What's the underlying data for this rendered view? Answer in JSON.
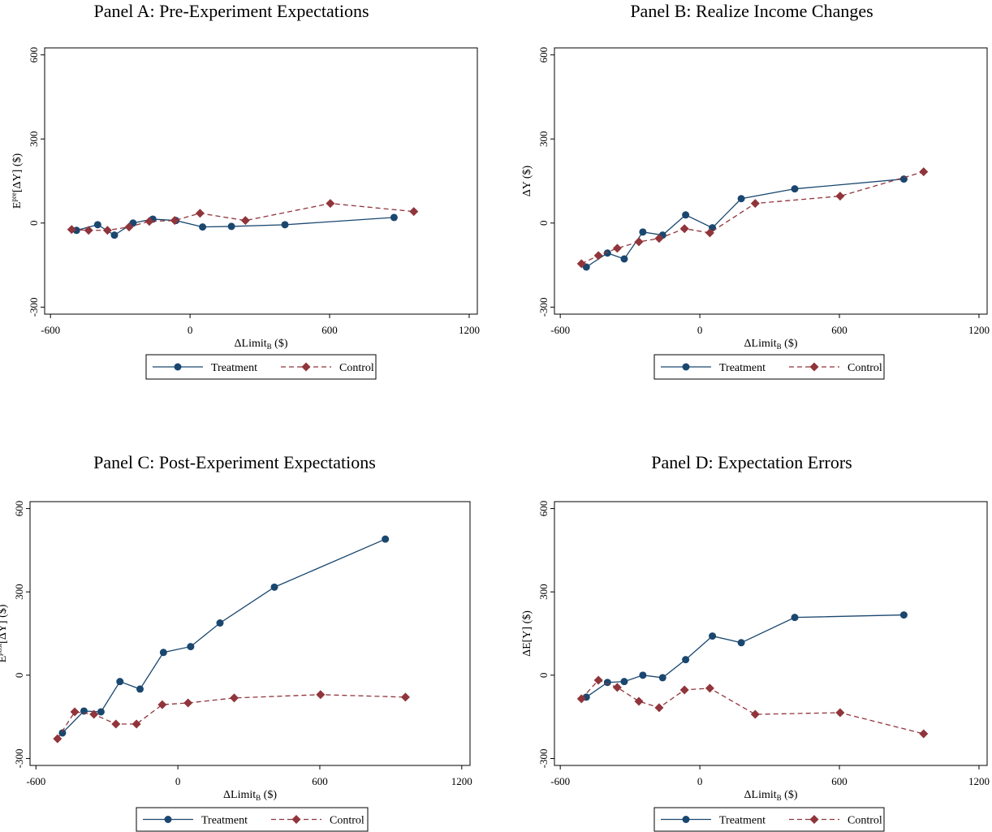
{
  "chart_data": [
    {
      "type": "line",
      "title": "Panel A: Pre-Experiment Expectations",
      "xlabel": [
        "ΔLimit",
        "B",
        " ($)"
      ],
      "ylabel": [
        "E",
        "pre",
        "[ΔY] ($)"
      ],
      "xlim": [
        -625,
        1235
      ],
      "ylim": [
        -325,
        625
      ],
      "xticks": [
        -600,
        0,
        600,
        1200
      ],
      "yticks": [
        -300,
        0,
        300,
        600
      ],
      "series": [
        {
          "name": "Treatment",
          "color": "#1a476f",
          "marker": "circle",
          "dash": false,
          "x": [
            -488,
            -397,
            -325,
            -245,
            -160,
            -61,
            54,
            178,
            408,
            877
          ],
          "values": [
            -26,
            -6,
            -43,
            0,
            14,
            9,
            -14,
            -12,
            -6,
            20
          ]
        },
        {
          "name": "Control",
          "color": "#90353b",
          "marker": "diamond",
          "dash": true,
          "x": [
            -509,
            -436,
            -355,
            -262,
            -175,
            -66,
            43,
            238,
            603,
            962
          ],
          "values": [
            -23,
            -26,
            -26,
            -14,
            6,
            9,
            35,
            9,
            70,
            41
          ]
        }
      ]
    },
    {
      "type": "line",
      "title": "Panel B: Realize Income Changes",
      "xlabel": [
        "ΔLimit",
        "B",
        " ($)"
      ],
      "ylabel": [
        "ΔY ($)"
      ],
      "xlim": [
        -625,
        1235
      ],
      "ylim": [
        -325,
        625
      ],
      "xticks": [
        -600,
        0,
        600,
        1200
      ],
      "yticks": [
        -300,
        0,
        300,
        600
      ],
      "series": [
        {
          "name": "Treatment",
          "color": "#1a476f",
          "marker": "circle",
          "dash": false,
          "x": [
            -488,
            -397,
            -325,
            -245,
            -160,
            -61,
            54,
            178,
            408,
            877
          ],
          "values": [
            -157,
            -107,
            -128,
            -32,
            -43,
            29,
            -17,
            87,
            122,
            157
          ]
        },
        {
          "name": "Control",
          "color": "#90353b",
          "marker": "diamond",
          "dash": true,
          "x": [
            -509,
            -436,
            -355,
            -262,
            -175,
            -66,
            43,
            238,
            603,
            962
          ],
          "values": [
            -145,
            -116,
            -90,
            -67,
            -55,
            -20,
            -35,
            70,
            96,
            183
          ]
        }
      ]
    },
    {
      "type": "line",
      "title": "Panel C: Post-Experiment Expectations",
      "xlabel": [
        "ΔLimit",
        "B",
        " ($)"
      ],
      "ylabel": [
        "E",
        "post",
        "[ΔY] ($)"
      ],
      "xlim": [
        -625,
        1235
      ],
      "ylim": [
        -325,
        625
      ],
      "xticks": [
        -600,
        0,
        600,
        1200
      ],
      "yticks": [
        -300,
        0,
        300,
        600
      ],
      "series": [
        {
          "name": "Treatment",
          "color": "#1a476f",
          "marker": "circle",
          "dash": false,
          "x": [
            -488,
            -397,
            -325,
            -245,
            -160,
            -61,
            54,
            178,
            408,
            877
          ],
          "values": [
            -208,
            -129,
            -132,
            -23,
            -50,
            82,
            103,
            188,
            317,
            490
          ]
        },
        {
          "name": "Control",
          "color": "#90353b",
          "marker": "diamond",
          "dash": true,
          "x": [
            -509,
            -436,
            -355,
            -262,
            -175,
            -66,
            43,
            238,
            603,
            962
          ],
          "values": [
            -229,
            -132,
            -141,
            -176,
            -176,
            -106,
            -100,
            -82,
            -70,
            -79
          ]
        }
      ]
    },
    {
      "type": "line",
      "title": "Panel D: Expectation Errors",
      "xlabel": [
        "ΔLimit",
        "B",
        " ($)"
      ],
      "ylabel": [
        "ΔE[Y] ($)"
      ],
      "xlim": [
        -625,
        1235
      ],
      "ylim": [
        -325,
        625
      ],
      "xticks": [
        -600,
        0,
        600,
        1200
      ],
      "yticks": [
        -300,
        0,
        300,
        600
      ],
      "series": [
        {
          "name": "Treatment",
          "color": "#1a476f",
          "marker": "circle",
          "dash": false,
          "x": [
            -488,
            -397,
            -325,
            -245,
            -160,
            -61,
            54,
            178,
            408,
            877
          ],
          "values": [
            -79,
            -26,
            -23,
            0,
            -9,
            56,
            141,
            117,
            208,
            217
          ]
        },
        {
          "name": "Control",
          "color": "#90353b",
          "marker": "diamond",
          "dash": true,
          "x": [
            -509,
            -436,
            -355,
            -262,
            -175,
            -66,
            43,
            238,
            603,
            962
          ],
          "values": [
            -85,
            -18,
            -44,
            -94,
            -117,
            -53,
            -47,
            -141,
            -135,
            -211
          ]
        }
      ]
    }
  ]
}
